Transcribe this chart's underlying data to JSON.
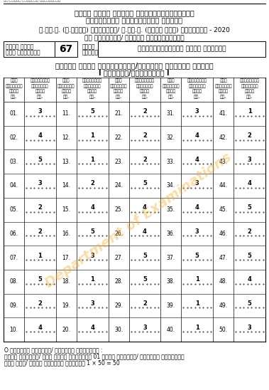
{
  "top_text": "ஞா லங்கை விசாரணை ஆணைக்குழு",
  "header1": "ශ්‍රී ලංකා විබාග දේಫාර්තමේන්තුව",
  "header2": "ඉලංක්කය් ಫරීක්සේත් තිදත්",
  "exam_line": "અ.ಫೋ.ಸ. (ઉ.ಹ್ರು) ವಿನ್ಯಾಸ/ ಕ.ಫೋ.ತ. (ಉಯರ್ ತರಂ) ಫರೀಕ್ಷೆ - 2020",
  "syllabus_line": "ශහ නිසිසේ/ ಫුතිය ಫාටත්තිටම්",
  "subj_no_l1": "ළයනා අංකය",
  "subj_no_l2": "ಫාට ඉලක්කම්",
  "subj_no": "67",
  "subj_l1": "ළයනය",
  "subj_l2": "ಫාටම්",
  "subj_name": "ಫාක්ෂත්වෙද්ය සදහා විඦයාව",
  "marks_title1": "ඍශින් දීමේ ಫෙොළණ්හකී/ಫුල්ලි වපශ෌ම් තිටම්",
  "marks_title2": "I ಫංක්ටය/ಫත්තිරම් I",
  "col_hdr_q_l1": "ුනා",
  "col_hdr_q_l2": "ප්රශ්නය",
  "col_hdr_q_l3": "විදා",
  "col_hdr_q_l4": "ඉල.",
  "col_hdr_a_l1": "සිළ්හුර්",
  "col_hdr_a_l2": "ප්රශ්නය",
  "col_hdr_a_l3": "විදා",
  "col_hdr_a_l4": "ඉල.",
  "answers": {
    "1": "3",
    "2": "4",
    "3": "5",
    "4": "3",
    "5": "2",
    "6": "2",
    "7": "1",
    "8": "5",
    "9": "2",
    "10": "4",
    "11": "5",
    "12": "1",
    "13": "1",
    "14": "2",
    "15": "4",
    "16": "5",
    "17": "3",
    "18": "1",
    "19": "3",
    "20": "4",
    "21": "2",
    "22": "2",
    "23": "2",
    "24": "5",
    "25": "4",
    "26": "4",
    "27": "5",
    "28": "5",
    "29": "2",
    "30": "3",
    "31": "3",
    "32": "4",
    "33": "4",
    "34": "3",
    "35": "4",
    "36": "3",
    "37": "5",
    "38": "1",
    "39": "1",
    "40": "1",
    "41": "1",
    "42": "2",
    "43": "3",
    "44": "4",
    "45": "5",
    "46": "2",
    "47": "5",
    "48": "4",
    "49": "5",
    "50": "3"
  },
  "footer1": "O විසශෙස ුත්තරය/ විපලන් ඇතිරීම් :",
  "footer2": "වැල් ළිළුරු/ ොහු සටහා විසිසෙස 01 සහිත විපලන්/ ಫුල්ලි විද්යාව",
  "footer3": "ඇත් වසළ/ මොත් ළිළුරු ಫුල්ලි 1 × 50 = 50",
  "watermark": "Department of Examinations"
}
